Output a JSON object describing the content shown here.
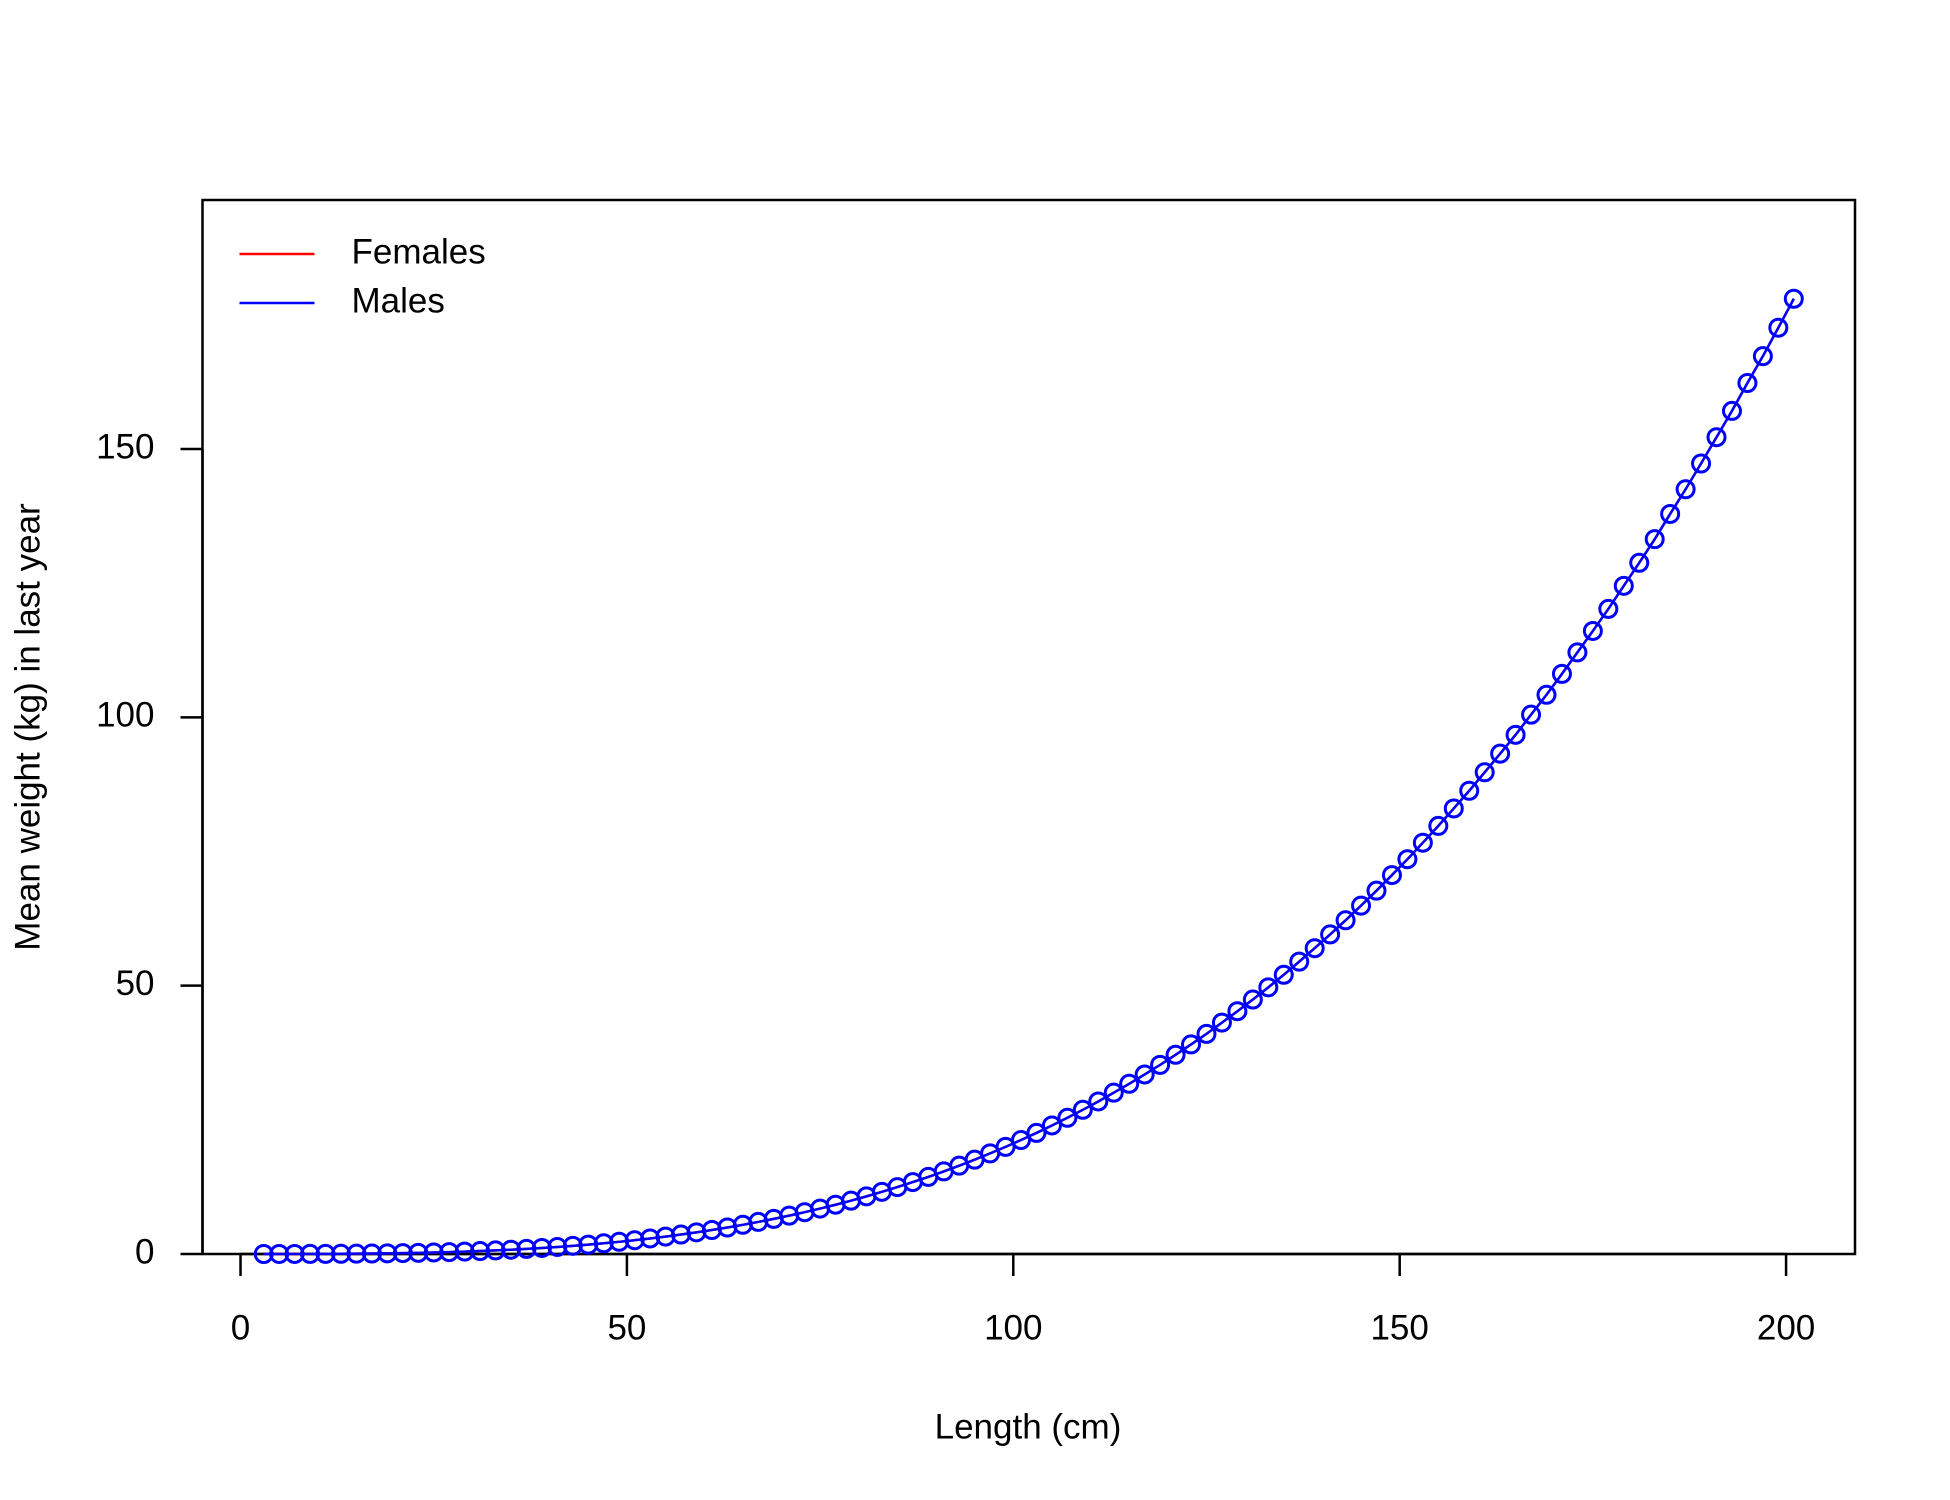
{
  "chart_data": {
    "type": "line",
    "xlabel": "Length (cm)",
    "ylabel": "Mean weight (kg) in last year",
    "x": [
      3,
      5,
      7,
      9,
      11,
      13,
      15,
      17,
      19,
      21,
      23,
      25,
      27,
      29,
      31,
      33,
      35,
      37,
      39,
      41,
      43,
      45,
      47,
      49,
      51,
      53,
      55,
      57,
      59,
      61,
      63,
      65,
      67,
      69,
      71,
      73,
      75,
      77,
      79,
      81,
      83,
      85,
      87,
      89,
      91,
      93,
      95,
      97,
      99,
      101,
      103,
      105,
      107,
      109,
      111,
      113,
      115,
      117,
      119,
      121,
      123,
      125,
      127,
      129,
      131,
      133,
      135,
      137,
      139,
      141,
      143,
      145,
      147,
      149,
      151,
      153,
      155,
      157,
      159,
      161,
      163,
      165,
      167,
      169,
      171,
      173,
      175,
      177,
      179,
      181,
      183,
      185,
      187,
      189,
      191,
      193,
      195,
      197,
      199,
      201
    ],
    "series": [
      {
        "name": "Females",
        "color": "#ff0000",
        "markers": false,
        "values": [
          0.0004,
          0.002,
          0.0056,
          0.0121,
          0.0225,
          0.0376,
          0.0586,
          0.0862,
          0.1216,
          0.1657,
          0.2195,
          0.284,
          0.36,
          0.449,
          0.552,
          0.67,
          0.803,
          0.954,
          1.123,
          1.31,
          1.517,
          1.747,
          1.998,
          2.272,
          2.571,
          2.895,
          3.247,
          3.625,
          4.035,
          4.473,
          4.938,
          5.441,
          5.977,
          6.54,
          7.149,
          7.791,
          8.466,
          9.18,
          9.935,
          10.74,
          11.58,
          12.47,
          13.4,
          14.37,
          15.39,
          16.46,
          17.58,
          18.75,
          19.96,
          21.24,
          22.56,
          23.95,
          25.38,
          26.87,
          28.42,
          30.06,
          31.72,
          33.45,
          35.24,
          37.12,
          39.05,
          41.01,
          43.12,
          45.24,
          47.42,
          49.69,
          52.03,
          54.48,
          56.98,
          59.55,
          62.18,
          64.91,
          67.7,
          70.61,
          73.56,
          76.64,
          79.77,
          83.02,
          86.32,
          89.76,
          93.23,
          96.74,
          100.5,
          104.2,
          108.1,
          112.1,
          116.1,
          120.2,
          124.5,
          128.8,
          133.2,
          137.9,
          142.5,
          147.3,
          152.2,
          157.1,
          162.3,
          167.3,
          172.6,
          178
        ]
      },
      {
        "name": "Males",
        "color": "#0000ff",
        "markers": true,
        "values": [
          0.0004,
          0.002,
          0.0056,
          0.0121,
          0.0225,
          0.0376,
          0.0586,
          0.0862,
          0.1216,
          0.1657,
          0.2195,
          0.284,
          0.36,
          0.449,
          0.552,
          0.67,
          0.803,
          0.954,
          1.123,
          1.31,
          1.517,
          1.747,
          1.998,
          2.272,
          2.571,
          2.895,
          3.247,
          3.625,
          4.035,
          4.473,
          4.938,
          5.441,
          5.977,
          6.54,
          7.149,
          7.791,
          8.466,
          9.18,
          9.935,
          10.74,
          11.58,
          12.47,
          13.4,
          14.37,
          15.39,
          16.46,
          17.58,
          18.75,
          19.96,
          21.24,
          22.56,
          23.95,
          25.38,
          26.87,
          28.42,
          30.06,
          31.72,
          33.45,
          35.24,
          37.12,
          39.05,
          41.01,
          43.12,
          45.24,
          47.42,
          49.69,
          52.03,
          54.48,
          56.98,
          59.55,
          62.18,
          64.91,
          67.7,
          70.61,
          73.56,
          76.64,
          79.77,
          83.02,
          86.32,
          89.76,
          93.23,
          96.74,
          100.5,
          104.2,
          108.1,
          112.1,
          116.1,
          120.2,
          124.5,
          128.8,
          133.2,
          137.9,
          142.5,
          147.3,
          152.2,
          157.1,
          162.3,
          167.3,
          172.6,
          178
        ]
      }
    ],
    "xlim": [
      -4.92,
      208.92
    ],
    "xticks": [
      0,
      50,
      100,
      150,
      200
    ],
    "ylim": [
      0,
      196.4
    ],
    "yticks": [
      0,
      50,
      100,
      150
    ],
    "grid": false,
    "legend": "top-left"
  }
}
